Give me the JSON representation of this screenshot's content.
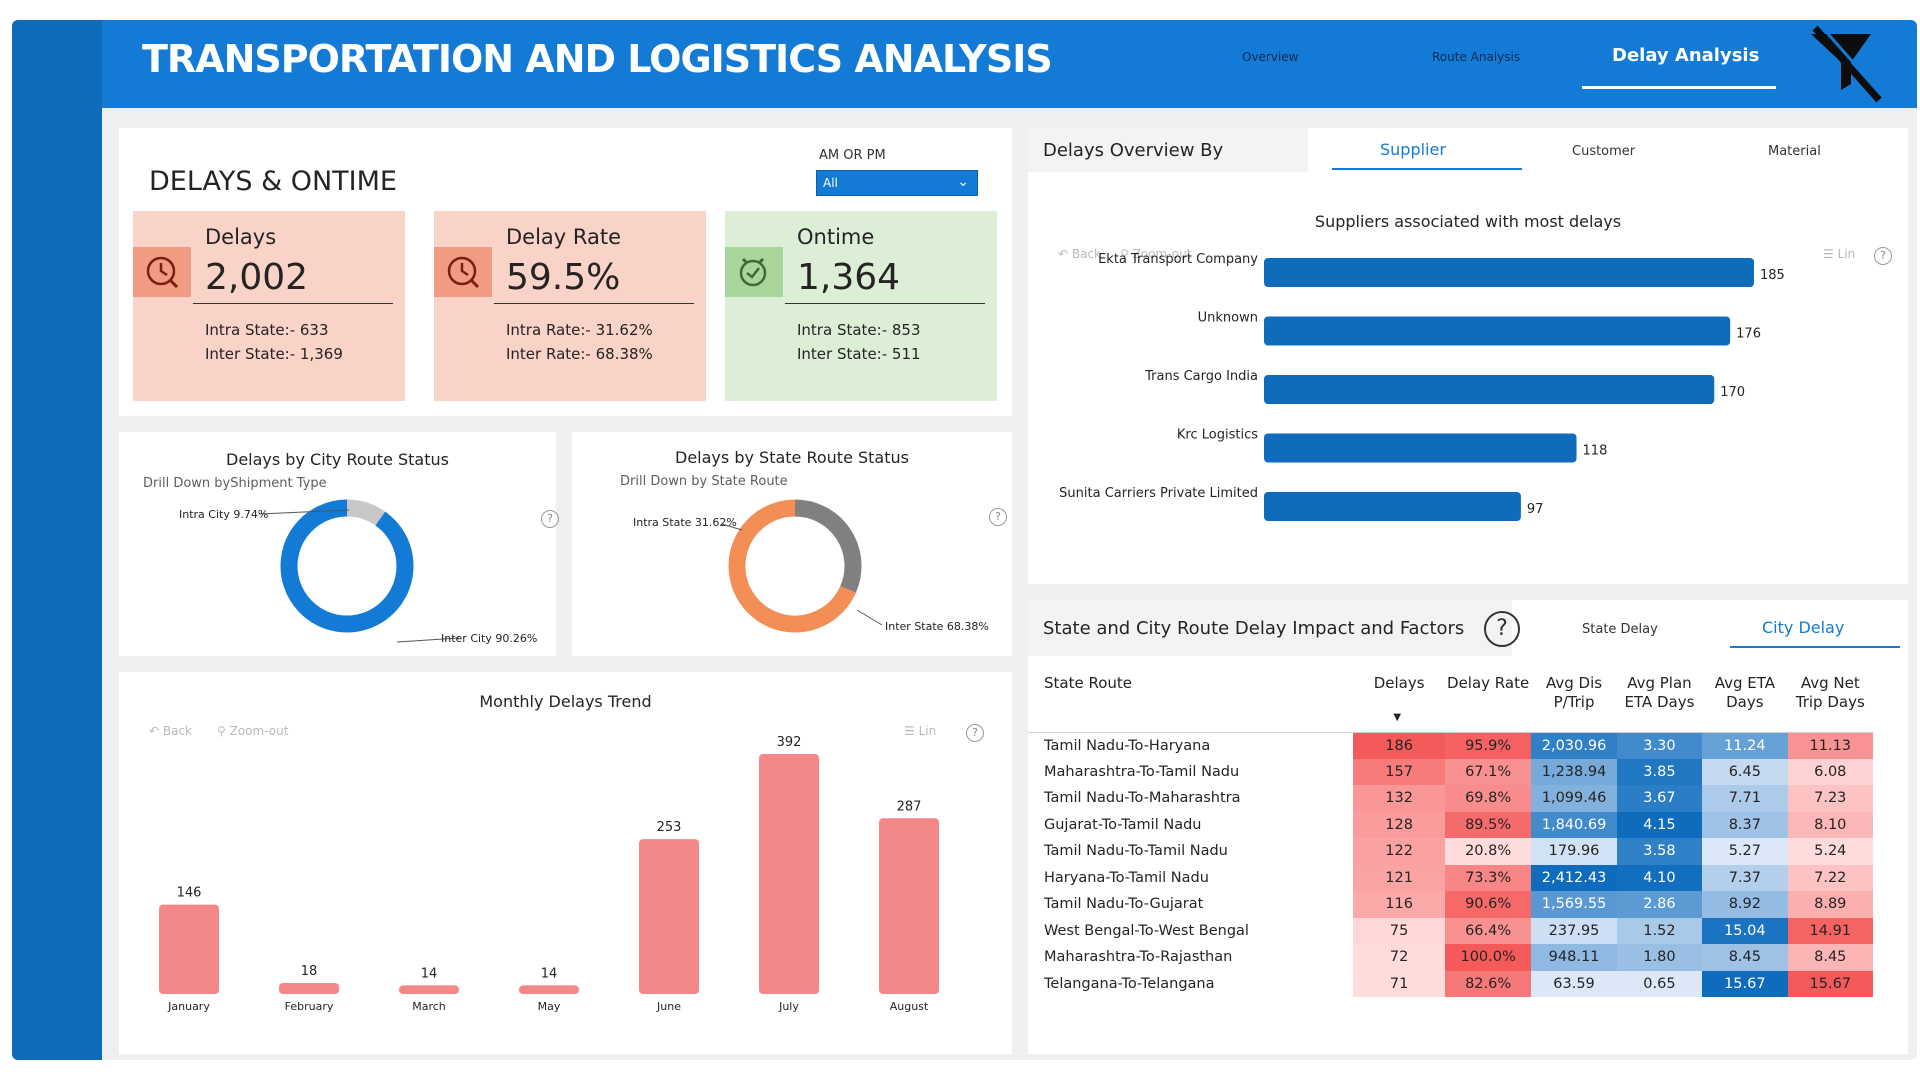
{
  "header": {
    "title": "TRANSPORTATION AND LOGISTICS ANALYSIS",
    "nav": [
      {
        "label": "Overview",
        "active": false
      },
      {
        "label": "Route Analysis",
        "active": false
      },
      {
        "label": "Delay Analysis",
        "active": true
      }
    ],
    "logo_icon": "truck-slash-icon"
  },
  "kpi": {
    "title": "DELAYS & ONTIME",
    "filter": {
      "label": "AM OR PM",
      "value": "All"
    },
    "cards": [
      {
        "label": "Delays",
        "value": "2,002",
        "line1": "Intra State:- 633",
        "line2": "Inter State:- 1,369",
        "icon": "clock-search-icon",
        "color": "#f9d3c7"
      },
      {
        "label": "Delay Rate",
        "value": "59.5%",
        "line1": "Intra Rate:- 31.62%",
        "line2": "Inter Rate:- 68.38%",
        "icon": "clock-search-icon",
        "color": "#f9d3c7"
      },
      {
        "label": "Ontime",
        "value": "1,364",
        "line1": "Intra State:- 853",
        "line2": "Inter State:- 511",
        "icon": "alarm-clock-icon",
        "color": "#dcefd6"
      }
    ]
  },
  "city_donut": {
    "title": "Delays by City Route Status",
    "subtitle": "Drill Down byShipment Type",
    "label_a": "Intra City 9.74%",
    "label_b": "Inter City 90.26%",
    "chart_data": {
      "type": "pie",
      "categories": [
        "Intra City",
        "Inter City"
      ],
      "values": [
        9.74,
        90.26
      ],
      "colors": [
        "#c8c8c8",
        "#137bd6"
      ]
    }
  },
  "state_donut": {
    "title": "Delays by State Route Status",
    "subtitle": "Drill Down by State Route",
    "label_a": "Intra State 31.62%",
    "label_b": "Inter State 68.38%",
    "chart_data": {
      "type": "pie",
      "categories": [
        "Intra State",
        "Inter State"
      ],
      "values": [
        31.62,
        68.38
      ],
      "colors": [
        "#808080",
        "#f28e56"
      ]
    }
  },
  "monthly": {
    "title": "Monthly Delays Trend",
    "toolbar": {
      "back": "Back",
      "zoom": "Zoom-out",
      "lin": "Lin"
    },
    "chart_data": {
      "type": "bar",
      "categories": [
        "January",
        "February",
        "March",
        "May",
        "June",
        "July",
        "August"
      ],
      "values": [
        146,
        18,
        14,
        14,
        253,
        392,
        287
      ],
      "color": "#f48787"
    }
  },
  "delays_overview": {
    "title": "Delays Overview By",
    "tabs": [
      {
        "label": "Supplier",
        "active": true
      },
      {
        "label": "Customer",
        "active": false
      },
      {
        "label": "Material",
        "active": false
      }
    ],
    "chart_title": "Suppliers associated with most delays",
    "toolbar": {
      "back": "Back",
      "zoom": "Zoom-out",
      "lin": "Lin"
    },
    "chart_data": {
      "type": "bar",
      "orientation": "horizontal",
      "categories": [
        "Ekta Transport Company",
        "Unknown",
        "Trans Cargo India",
        "Krc Logistics",
        "Sunita Carriers Private Limited"
      ],
      "values": [
        185,
        176,
        170,
        118,
        97
      ],
      "color": "#0f6cbd"
    }
  },
  "impact": {
    "title": "State and City Route Delay Impact and Factors",
    "tabs": [
      {
        "label": "State Delay",
        "active": false
      },
      {
        "label": "City Delay",
        "active": true
      }
    ],
    "columns": [
      "State Route",
      "Delays",
      "Delay Rate",
      "Avg Dis P/Trip",
      "Avg Plan ETA Days",
      "Avg ETA Days",
      "Avg Net Trip Days"
    ],
    "rows": [
      {
        "route": "Tamil Nadu-To-Haryana",
        "delays": "186",
        "rate": "95.9%",
        "dis": "2,030.96",
        "plan": "3.30",
        "eta": "11.24",
        "net": "11.13"
      },
      {
        "route": "Maharashtra-To-Tamil Nadu",
        "delays": "157",
        "rate": "67.1%",
        "dis": "1,238.94",
        "plan": "3.85",
        "eta": "6.45",
        "net": "6.08"
      },
      {
        "route": "Tamil Nadu-To-Maharashtra",
        "delays": "132",
        "rate": "69.8%",
        "dis": "1,099.46",
        "plan": "3.67",
        "eta": "7.71",
        "net": "7.23"
      },
      {
        "route": "Gujarat-To-Tamil Nadu",
        "delays": "128",
        "rate": "89.5%",
        "dis": "1,840.69",
        "plan": "4.15",
        "eta": "8.37",
        "net": "8.10"
      },
      {
        "route": "Tamil Nadu-To-Tamil Nadu",
        "delays": "122",
        "rate": "20.8%",
        "dis": "179.96",
        "plan": "3.58",
        "eta": "5.27",
        "net": "5.24"
      },
      {
        "route": "Haryana-To-Tamil Nadu",
        "delays": "121",
        "rate": "73.3%",
        "dis": "2,412.43",
        "plan": "4.10",
        "eta": "7.37",
        "net": "7.22"
      },
      {
        "route": "Tamil Nadu-To-Gujarat",
        "delays": "116",
        "rate": "90.6%",
        "dis": "1,569.55",
        "plan": "2.86",
        "eta": "8.92",
        "net": "8.89"
      },
      {
        "route": "West Bengal-To-West Bengal",
        "delays": "75",
        "rate": "66.4%",
        "dis": "237.95",
        "plan": "1.52",
        "eta": "15.04",
        "net": "14.91"
      },
      {
        "route": "Maharashtra-To-Rajasthan",
        "delays": "72",
        "rate": "100.0%",
        "dis": "948.11",
        "plan": "1.80",
        "eta": "8.45",
        "net": "8.45"
      },
      {
        "route": "Telangana-To-Telangana",
        "delays": "71",
        "rate": "82.6%",
        "dis": "63.59",
        "plan": "0.65",
        "eta": "15.67",
        "net": "15.67"
      }
    ]
  }
}
